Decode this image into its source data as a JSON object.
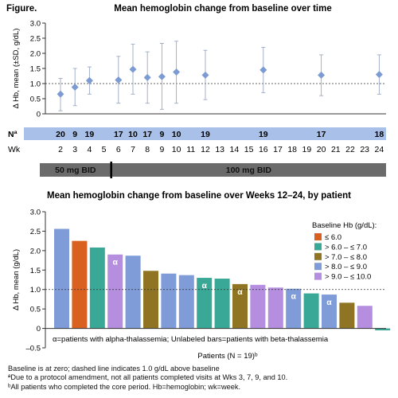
{
  "figure_label": "Figure.",
  "colors": {
    "point": "#7b9bd2",
    "whisker": "#9aa9c4",
    "visit_band": "#a9c1e8",
    "dose_band": "#6b6b6b",
    "alpha_text": "#ffffff"
  },
  "chart_data": [
    {
      "type": "scatter",
      "title": "Mean hemoglobin change from baseline over time",
      "ylabel": "Δ Hb, mean (±SD, g/dL)",
      "ylim": [
        0,
        3.0
      ],
      "yticks": [
        "0",
        "0.5",
        "1.0",
        "1.5",
        "2.0",
        "2.5",
        "3.0"
      ],
      "reference_line": 1.0,
      "xlabel": "Wk",
      "x_ticks": [
        "2",
        "3",
        "4",
        "5",
        "6",
        "7",
        "8",
        "9",
        "10",
        "11",
        "12",
        "13",
        "14",
        "15",
        "16",
        "17",
        "18",
        "19",
        "20",
        "21",
        "22",
        "23",
        "24"
      ],
      "points": [
        {
          "week": 2,
          "mean": 0.65,
          "sd_low": 0.1,
          "sd_high": 1.17
        },
        {
          "week": 3,
          "mean": 0.88,
          "sd_low": 0.27,
          "sd_high": 1.5
        },
        {
          "week": 4,
          "mean": 1.1,
          "sd_low": 0.65,
          "sd_high": 1.55
        },
        {
          "week": 6,
          "mean": 1.12,
          "sd_low": 0.35,
          "sd_high": 1.9
        },
        {
          "week": 7,
          "mean": 1.47,
          "sd_low": 0.65,
          "sd_high": 2.3
        },
        {
          "week": 8,
          "mean": 1.2,
          "sd_low": 0.35,
          "sd_high": 2.05
        },
        {
          "week": 9,
          "mean": 1.23,
          "sd_low": 0.15,
          "sd_high": 2.33
        },
        {
          "week": 10,
          "mean": 1.38,
          "sd_low": 0.35,
          "sd_high": 2.4
        },
        {
          "week": 12,
          "mean": 1.28,
          "sd_low": 0.47,
          "sd_high": 2.1
        },
        {
          "week": 16,
          "mean": 1.45,
          "sd_low": 0.7,
          "sd_high": 2.2
        },
        {
          "week": 20,
          "mean": 1.28,
          "sd_low": 0.6,
          "sd_high": 1.95
        },
        {
          "week": 24,
          "mean": 1.3,
          "sd_low": 0.65,
          "sd_high": 1.95
        }
      ],
      "n_label": "Nª",
      "n_values": [
        {
          "week": 2,
          "n": "20"
        },
        {
          "week": 3,
          "n": "9"
        },
        {
          "week": 4,
          "n": "19"
        },
        {
          "week": 6,
          "n": "17"
        },
        {
          "week": 7,
          "n": "10"
        },
        {
          "week": 8,
          "n": "17"
        },
        {
          "week": 9,
          "n": "9"
        },
        {
          "week": 10,
          "n": "10"
        },
        {
          "week": 12,
          "n": "19"
        },
        {
          "week": 16,
          "n": "19"
        },
        {
          "week": 20,
          "n": "17"
        },
        {
          "week": 24,
          "n": "18"
        }
      ],
      "dose_periods": [
        {
          "label": "50 mg BID",
          "from_week": 1.5,
          "to_week": 5.5
        },
        {
          "label": "100 mg BID",
          "from_week": 5.5,
          "to_week": 24.5
        }
      ]
    },
    {
      "type": "bar",
      "title": "Mean hemoglobin change from baseline over Weeks 12–24, by patient",
      "ylabel": "Δ Hb, mean (g/dL)",
      "xlabel": "Patients (N = 19)ᵇ",
      "ylim": [
        -0.5,
        3.0
      ],
      "yticks": [
        "–0.5",
        "0",
        "0.5",
        "1.0",
        "1.5",
        "2.0",
        "2.5",
        "3.0"
      ],
      "reference_line": 1.0,
      "legend_title": "Baseline Hb (g/dL):",
      "legend": [
        {
          "label": "≤ 6.0",
          "color": "#d9601f"
        },
        {
          "label": "> 6.0 – ≤ 7.0",
          "color": "#3aa896"
        },
        {
          "label": "> 7.0 – ≤ 8.0",
          "color": "#8f7523"
        },
        {
          "label": "> 8.0 – ≤ 9.0",
          "color": "#7f9cd8"
        },
        {
          "label": "> 9.0 – ≤ 10.0",
          "color": "#b58ee0"
        }
      ],
      "legend_placement": "top-right",
      "values": [
        2.56,
        2.25,
        2.08,
        1.9,
        1.87,
        1.48,
        1.41,
        1.37,
        1.3,
        1.28,
        1.14,
        1.12,
        1.05,
        1.02,
        0.9,
        0.87,
        0.66,
        0.58,
        -0.05
      ],
      "bar_groups": [
        3,
        0,
        1,
        4,
        3,
        2,
        3,
        3,
        1,
        1,
        2,
        4,
        4,
        3,
        1,
        3,
        2,
        4,
        1
      ],
      "alpha_markers": [
        "",
        "",
        "",
        "α",
        "",
        "",
        "",
        "",
        "α",
        "",
        "α",
        "",
        "",
        "α",
        "",
        "α",
        "",
        "",
        ""
      ],
      "annotation": "α=patients with alpha-thalassemia; Unlabeled bars=patients with beta-thalassemia"
    }
  ],
  "footnotes": [
    "Baseline is at zero; dashed line indicates 1.0 g/dL above baseline",
    "ªDue to a protocol amendment, not all patients completed visits at Wks 3, 7, 9, and 10.",
    "ᵇAll patients who completed the core period. Hb=hemoglobin; wk=week."
  ]
}
